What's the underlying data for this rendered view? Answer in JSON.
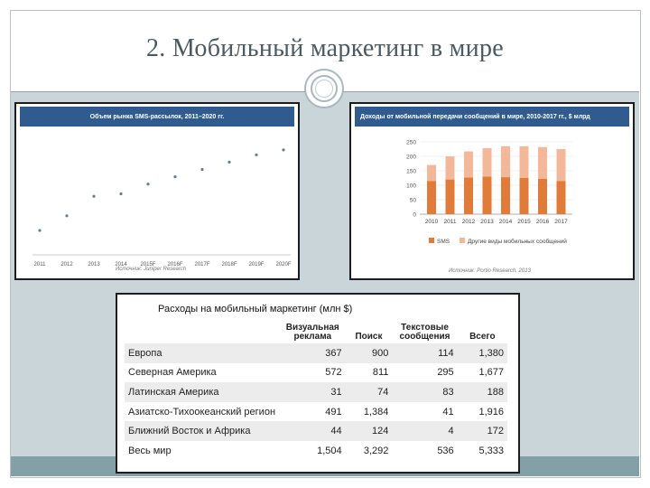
{
  "slide": {
    "title": "2. Мобильный маркетинг в мире"
  },
  "chart_sms": {
    "header": "Объем рынка SMS-рассылок, 2011–2020 гг.",
    "source": "Источник: Juniper Research",
    "chart_data": {
      "type": "scatter",
      "title": "Объем рынка SMS-рассылок, 2011–2020 гг.",
      "categories": [
        "2011",
        "2012",
        "2013",
        "2014",
        "2015F",
        "2016F",
        "2017F",
        "2018F",
        "2019F",
        "2020F"
      ],
      "values": [
        50,
        80,
        120,
        125,
        145,
        160,
        175,
        190,
        205,
        215
      ],
      "ylim": [
        0,
        250
      ]
    }
  },
  "chart_revenue": {
    "header": "Доходы от мобильной передачи сообщений в мире, 2010-2017 гг., $ млрд",
    "source": "Источник: Portio Research, 2013",
    "chart_data": {
      "type": "bar",
      "title": "Доходы от мобильной передачи сообщений в мире, 2010-2017 гг., $ млрд",
      "categories": [
        "2010",
        "2011",
        "2012",
        "2013",
        "2014",
        "2015",
        "2016",
        "2017"
      ],
      "yticks": [
        "250",
        "200",
        "150",
        "100",
        "50",
        "0"
      ],
      "ylim": [
        0,
        250
      ],
      "series": [
        {
          "name": "SMS",
          "color": "#e07b39",
          "values": [
            115,
            120,
            127,
            130,
            128,
            125,
            122,
            115
          ]
        },
        {
          "name": "Другие виды мобильных сообщений",
          "color": "#f3b89a",
          "values": [
            55,
            80,
            90,
            98,
            107,
            110,
            110,
            110
          ]
        }
      ]
    }
  },
  "table": {
    "title": "Расходы на мобильный маркетинг (млн $)",
    "columns": [
      "Визуальная реклама",
      "Поиск",
      "Текстовые сообщения",
      "Всего"
    ],
    "rows": [
      {
        "region": "Европа",
        "values": [
          "367",
          "900",
          "114",
          "1,380"
        ]
      },
      {
        "region": "Северная Америка",
        "values": [
          "572",
          "811",
          "295",
          "1,677"
        ]
      },
      {
        "region": "Латинская Америка",
        "values": [
          "31",
          "74",
          "83",
          "188"
        ]
      },
      {
        "region": "Азиатско-Тихоокеанский регион",
        "values": [
          "491",
          "1,384",
          "41",
          "1,916"
        ]
      },
      {
        "region": "Ближний Восток и Африка",
        "values": [
          "44",
          "124",
          "4",
          "172"
        ]
      },
      {
        "region": "Весь мир",
        "values": [
          "1,504",
          "3,292",
          "536",
          "5,333"
        ]
      }
    ]
  }
}
